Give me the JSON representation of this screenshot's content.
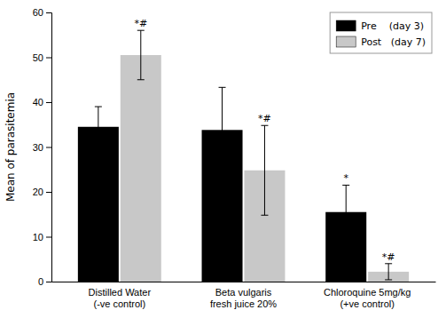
{
  "chart_data": {
    "type": "bar",
    "categories": [
      "Distilled Water\n(-ve control)",
      "Beta vulgaris\nfresh juice 20%",
      "Chloroquine 5mg/kg\n(+ve control)"
    ],
    "series": [
      {
        "name": "Pre    (day 3)",
        "color": "#000000",
        "values": [
          34.5,
          33.8,
          15.5
        ],
        "errors": [
          4.5,
          9.5,
          6.0
        ],
        "annotations": [
          null,
          null,
          "*"
        ]
      },
      {
        "name": "Post   (day 7)",
        "color": "#c8c8c8",
        "values": [
          50.5,
          24.8,
          2.2
        ],
        "errors": [
          5.5,
          10.0,
          1.8
        ],
        "annotations": [
          "*#",
          "*#",
          "*#"
        ]
      }
    ],
    "ylabel": "Mean of parasitemia",
    "ylim": [
      0,
      60
    ],
    "yticks": [
      0,
      10,
      20,
      30,
      40,
      50,
      60
    ],
    "grid": false,
    "legend": "upper right"
  }
}
